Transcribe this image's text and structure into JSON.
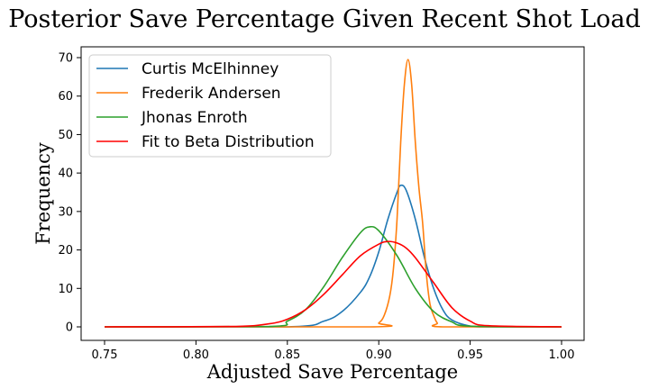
{
  "chart_data": {
    "type": "line",
    "title": "Posterior Save Percentage Given Recent Shot Load",
    "xlabel": "Adjusted Save Percentage",
    "ylabel": "Frequency",
    "xlim": [
      0.75,
      1.0
    ],
    "ylim": [
      0,
      70
    ],
    "xticks": [
      0.75,
      0.8,
      0.85,
      0.9,
      0.95,
      1.0
    ],
    "xtick_labels": [
      "0.75",
      "0.80",
      "0.85",
      "0.90",
      "0.95",
      "1.00"
    ],
    "yticks": [
      0,
      10,
      20,
      30,
      40,
      50,
      60,
      70
    ],
    "ytick_labels": [
      "0",
      "10",
      "20",
      "30",
      "40",
      "50",
      "60",
      "70"
    ],
    "grid": false,
    "legend_position": "top-left",
    "series": [
      {
        "name": "Curtis McElhinney",
        "color": "#1f77b4",
        "x": [
          0.75,
          0.85,
          0.87,
          0.88,
          0.89,
          0.895,
          0.9,
          0.905,
          0.91,
          0.912,
          0.915,
          0.92,
          0.925,
          0.93,
          0.935,
          0.94,
          0.95,
          0.96,
          1.0
        ],
        "y": [
          0,
          0,
          1.5,
          4.0,
          9.0,
          13.0,
          19.5,
          28.0,
          35.0,
          36.8,
          35.5,
          28.0,
          18.0,
          10.0,
          4.5,
          1.8,
          0.2,
          0,
          0
        ]
      },
      {
        "name": "Frederik Andersen",
        "color": "#ff7f0e",
        "x": [
          0.75,
          0.895,
          0.9,
          0.903,
          0.906,
          0.908,
          0.91,
          0.912,
          0.914,
          0.916,
          0.918,
          0.92,
          0.922,
          0.924,
          0.926,
          0.928,
          0.93,
          0.932,
          0.935,
          1.0
        ],
        "y": [
          0,
          0,
          1.0,
          3.0,
          8.0,
          15.0,
          28.0,
          48.0,
          63.0,
          69.5,
          63.0,
          48.0,
          36.0,
          27.0,
          14.0,
          6.0,
          3.0,
          1.0,
          0,
          0
        ]
      },
      {
        "name": "Jhonas Enroth",
        "color": "#2ca02c",
        "x": [
          0.75,
          0.84,
          0.85,
          0.86,
          0.87,
          0.88,
          0.89,
          0.895,
          0.9,
          0.91,
          0.92,
          0.93,
          0.94,
          0.95,
          1.0
        ],
        "y": [
          0,
          0.1,
          1.5,
          4.5,
          10.5,
          18.0,
          24.5,
          26.0,
          25.0,
          18.5,
          10.0,
          4.0,
          1.3,
          0.2,
          0
        ]
      },
      {
        "name": "Fit to Beta Distribution",
        "color": "#ff0000",
        "x": [
          0.75,
          0.82,
          0.84,
          0.85,
          0.86,
          0.87,
          0.88,
          0.89,
          0.9,
          0.905,
          0.91,
          0.915,
          0.92,
          0.93,
          0.94,
          0.95,
          0.96,
          1.0
        ],
        "y": [
          0,
          0.1,
          0.8,
          2.0,
          4.5,
          8.5,
          13.5,
          18.5,
          21.5,
          22.2,
          21.8,
          20.5,
          18.0,
          11.5,
          5.0,
          1.5,
          0.3,
          0
        ]
      }
    ]
  }
}
